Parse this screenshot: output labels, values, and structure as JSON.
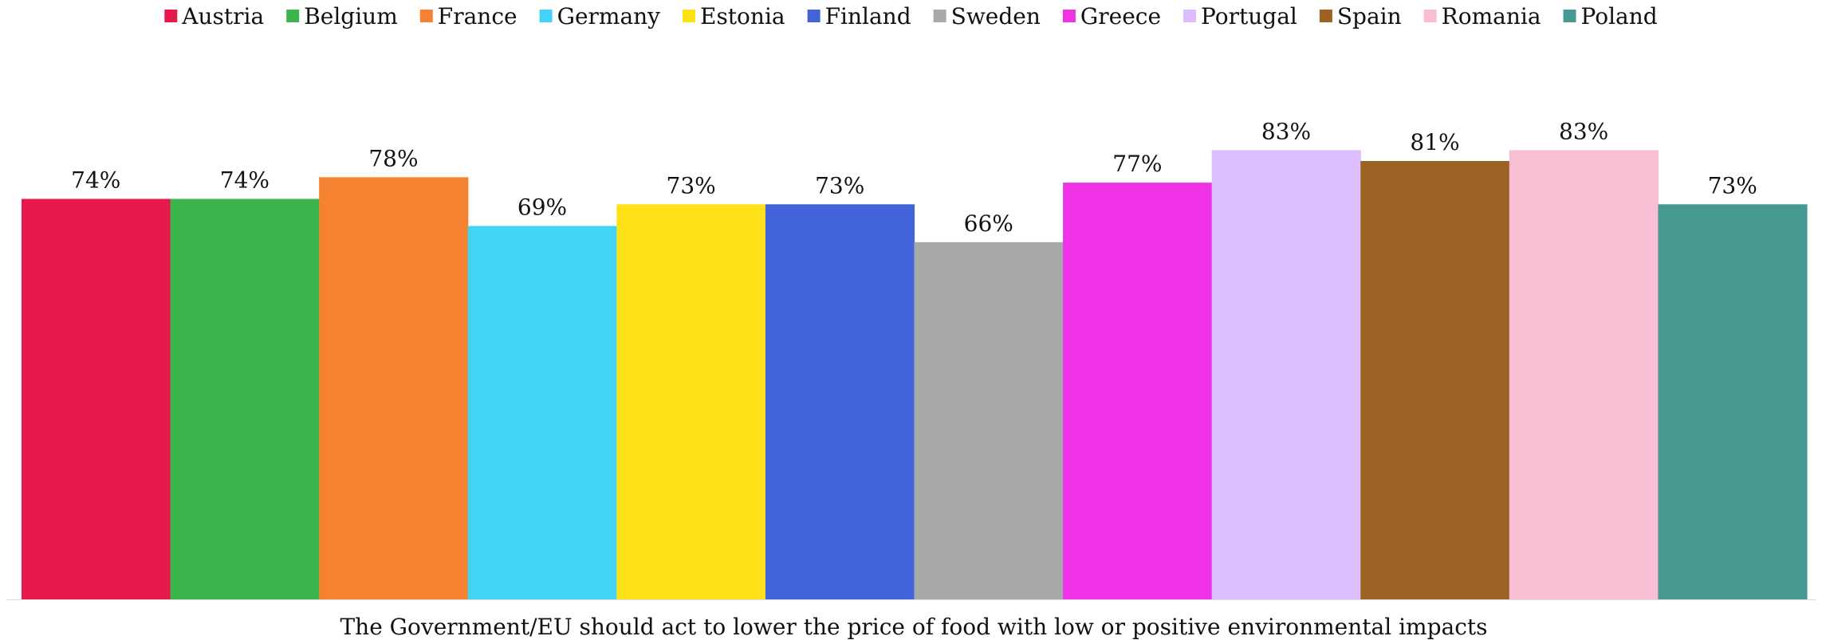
{
  "chart_data": {
    "type": "bar",
    "categories": [
      "The Government/EU should act to lower the price of food with low or positive environmental impacts"
    ],
    "series": [
      {
        "name": "Austria",
        "values": [
          74
        ],
        "label": "74%",
        "color": "#e5194c"
      },
      {
        "name": "Belgium",
        "values": [
          74
        ],
        "label": "74%",
        "color": "#3db44b"
      },
      {
        "name": "France",
        "values": [
          78
        ],
        "label": "78%",
        "color": "#f58231"
      },
      {
        "name": "Germany",
        "values": [
          69
        ],
        "label": "69%",
        "color": "#42d4f4"
      },
      {
        "name": "Estonia",
        "values": [
          73
        ],
        "label": "73%",
        "color": "#ffe119"
      },
      {
        "name": "Finland",
        "values": [
          73
        ],
        "label": "73%",
        "color": "#4363d8"
      },
      {
        "name": "Sweden",
        "values": [
          66
        ],
        "label": "66%",
        "color": "#a9a9a9"
      },
      {
        "name": "Greece",
        "values": [
          77
        ],
        "label": "77%",
        "color": "#f032e6"
      },
      {
        "name": "Portugal",
        "values": [
          83
        ],
        "label": "83%",
        "color": "#dcbeff"
      },
      {
        "name": "Spain",
        "values": [
          81
        ],
        "label": "81%",
        "color": "#9a6324"
      },
      {
        "name": "Romania",
        "values": [
          83
        ],
        "label": "83%",
        "color": "#fabed4"
      },
      {
        "name": "Poland",
        "values": [
          73
        ],
        "label": "73%",
        "color": "#469990"
      }
    ],
    "ylim": [
      0,
      100
    ],
    "unit": "%",
    "grid": false,
    "legend": "top"
  }
}
